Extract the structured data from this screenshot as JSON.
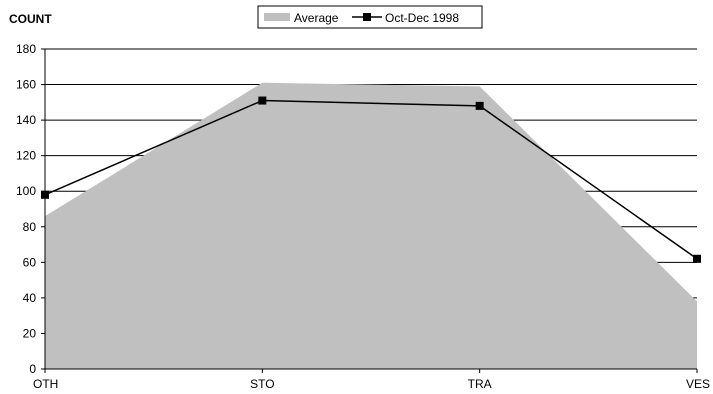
{
  "chart_data": {
    "type": "area",
    "ylabel": "COUNT",
    "categories": [
      "OTH",
      "STO",
      "TRA",
      "VES"
    ],
    "ylim": [
      0,
      180
    ],
    "yticks": [
      0,
      20,
      40,
      60,
      80,
      100,
      120,
      140,
      160,
      180
    ],
    "grid": true,
    "legend_position": "top",
    "series": [
      {
        "name": "Average",
        "type": "area",
        "color": "#c0c0c0",
        "values": [
          86,
          161,
          159,
          38
        ]
      },
      {
        "name": "Oct-Dec 1998",
        "type": "line",
        "color": "#000000",
        "marker": "square",
        "values": [
          98,
          151,
          148,
          62
        ]
      }
    ]
  }
}
